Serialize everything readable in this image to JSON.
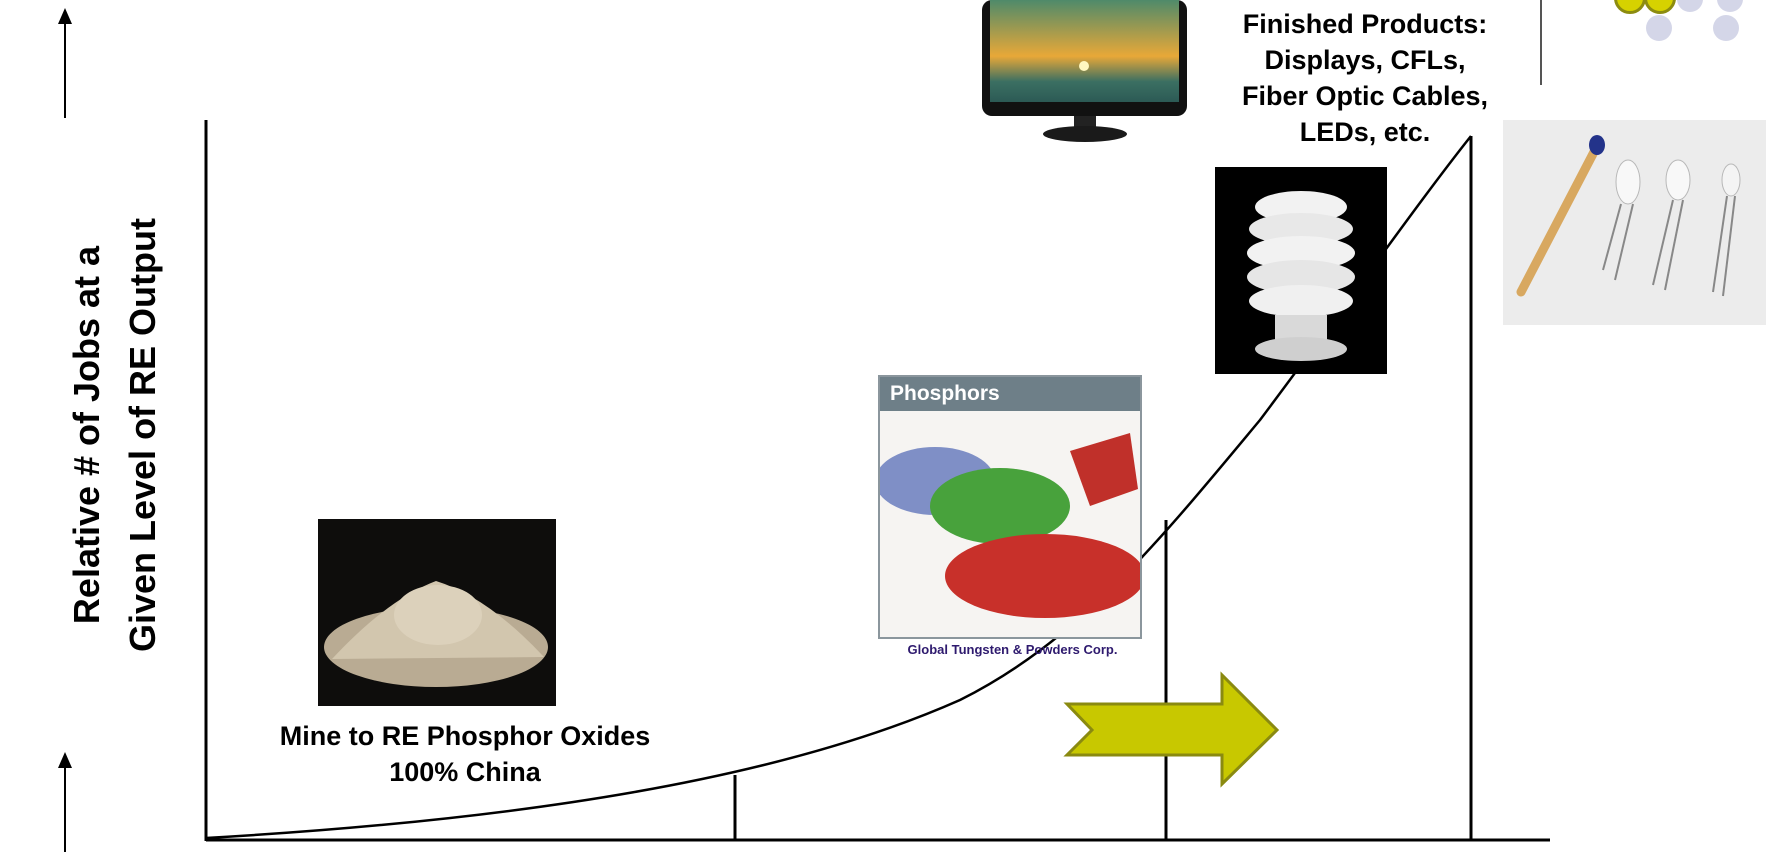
{
  "y_axis": {
    "label_line1": "Relative # of Jobs at a",
    "label_line2": "Given Level of RE  Output"
  },
  "stages": {
    "mine": {
      "line1": "Mine to RE  Phosphor Oxides",
      "line2": "100% China"
    },
    "phosphors": {
      "header": "Phosphors",
      "credit": "Global Tungsten & Powders Corp."
    },
    "finished": {
      "line1": "Finished Products:",
      "line2": "Displays, CFLs,",
      "line3": "Fiber Optic Cables,",
      "line4": "LEDs, etc."
    }
  },
  "colors": {
    "arrow_fill": "#c8c800",
    "arrow_stroke": "#8a8a10",
    "line": "#000000",
    "dot_grey": "#d4d6e8",
    "dot_yellow": "#d6d200"
  },
  "icons": [
    "oxide-powder-photo",
    "phosphor-powders-photo",
    "cfl-bulb-photo",
    "monitor-photo",
    "led-match-photo",
    "forward-arrow-icon"
  ]
}
